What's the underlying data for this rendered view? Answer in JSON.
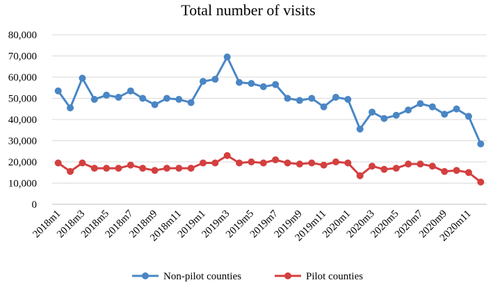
{
  "chart_data": {
    "type": "line",
    "title": "Total number of visits",
    "xlabel": "",
    "ylabel": "",
    "ylim": [
      0,
      80000
    ],
    "yticks": [
      0,
      10000,
      20000,
      30000,
      40000,
      50000,
      60000,
      70000,
      80000
    ],
    "ytick_labels": [
      "0",
      "10,000",
      "20,000",
      "30,000",
      "40,000",
      "50,000",
      "60,000",
      "70,000",
      "80,000"
    ],
    "grid": true,
    "legend_position": "bottom",
    "categories": [
      "2018m1",
      "2018m2",
      "2018m3",
      "2018m4",
      "2018m5",
      "2018m6",
      "2018m7",
      "2018m8",
      "2018m9",
      "2018m10",
      "2018m11",
      "2018m12",
      "2019m1",
      "2019m2",
      "2019m3",
      "2019m4",
      "2019m5",
      "2019m6",
      "2019m7",
      "2019m8",
      "2019m9",
      "2019m10",
      "2019m11",
      "2019m12",
      "2020m1",
      "2020m2",
      "2020m3",
      "2020m4",
      "2020m5",
      "2020m6",
      "2020m7",
      "2020m8",
      "2020m9",
      "2020m10",
      "2020m11",
      "2020m12"
    ],
    "tick_labels": [
      "2018m1",
      "2018m3",
      "2018m5",
      "2018m7",
      "2018m9",
      "2018m11",
      "2019m1",
      "2019m3",
      "2019m5",
      "2019m7",
      "2019m9",
      "2019m11",
      "2020m1",
      "2020m3",
      "2020m5",
      "2020m7",
      "2020m9",
      "2020m11"
    ],
    "series": [
      {
        "name": "Non-pilot counties",
        "color": "#4a86c5",
        "values": [
          53500,
          45500,
          59500,
          49500,
          51500,
          50500,
          53500,
          50000,
          47000,
          50000,
          49500,
          48000,
          58000,
          59000,
          69500,
          57500,
          57000,
          55500,
          56500,
          50000,
          49000,
          50000,
          46000,
          50500,
          49500,
          35500,
          43500,
          40500,
          42000,
          44500,
          47500,
          46000,
          42500,
          45000,
          41500,
          28500
        ]
      },
      {
        "name": "Pilot counties",
        "color": "#d43f3f",
        "values": [
          19500,
          15500,
          19500,
          17000,
          17000,
          17000,
          18500,
          17000,
          16000,
          17000,
          17000,
          17000,
          19500,
          19500,
          23000,
          19500,
          20000,
          19500,
          21000,
          19500,
          19000,
          19500,
          18500,
          20000,
          19500,
          13500,
          18000,
          16500,
          17000,
          19000,
          19000,
          18000,
          15500,
          16000,
          15000,
          10500
        ]
      }
    ]
  }
}
